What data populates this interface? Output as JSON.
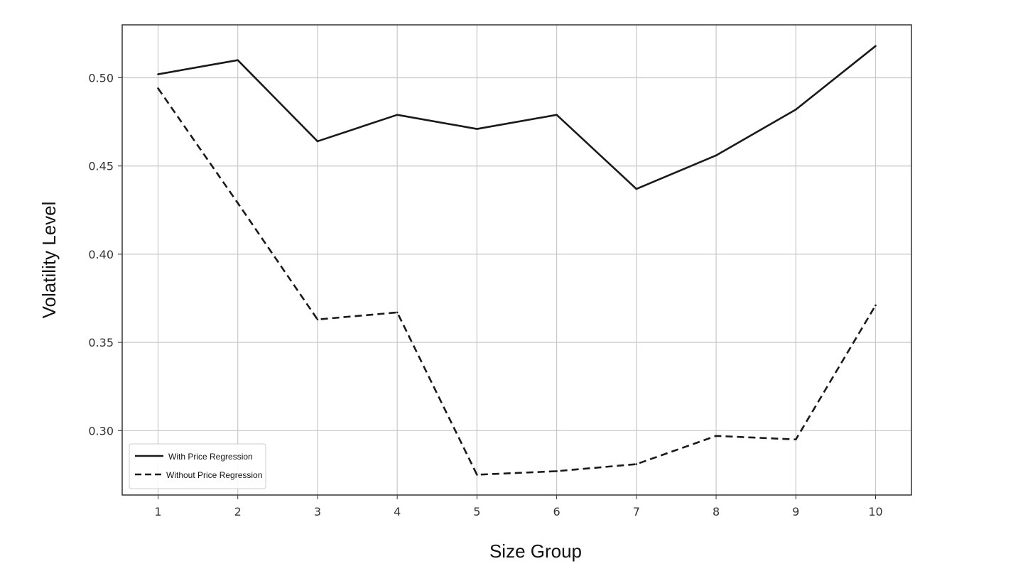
{
  "chart_data": {
    "type": "line",
    "title": "",
    "xlabel": "Size Group",
    "ylabel": "Volatility Level",
    "x": [
      1,
      2,
      3,
      4,
      5,
      6,
      7,
      8,
      9,
      10
    ],
    "x_tick_labels": [
      "1",
      "2",
      "3",
      "4",
      "5",
      "6",
      "7",
      "8",
      "9",
      "10"
    ],
    "y_ticks": [
      0.3,
      0.35,
      0.4,
      0.45,
      0.5
    ],
    "y_tick_labels": [
      "0.30",
      "0.35",
      "0.40",
      "0.45",
      "0.50"
    ],
    "xlim": [
      0.55,
      10.45
    ],
    "ylim": [
      0.2635,
      0.53
    ],
    "grid": true,
    "legend_position": "lower-left",
    "series": [
      {
        "name": "With Price Regression",
        "line_style": "solid",
        "color": "#1a1a1a",
        "values": [
          0.502,
          0.51,
          0.464,
          0.479,
          0.471,
          0.479,
          0.437,
          0.456,
          0.482,
          0.518
        ]
      },
      {
        "name": "Without Price Regression",
        "line_style": "dashed",
        "color": "#1a1a1a",
        "values": [
          0.494,
          0.429,
          0.363,
          0.367,
          0.275,
          0.277,
          0.281,
          0.297,
          0.295,
          0.371
        ]
      }
    ]
  }
}
